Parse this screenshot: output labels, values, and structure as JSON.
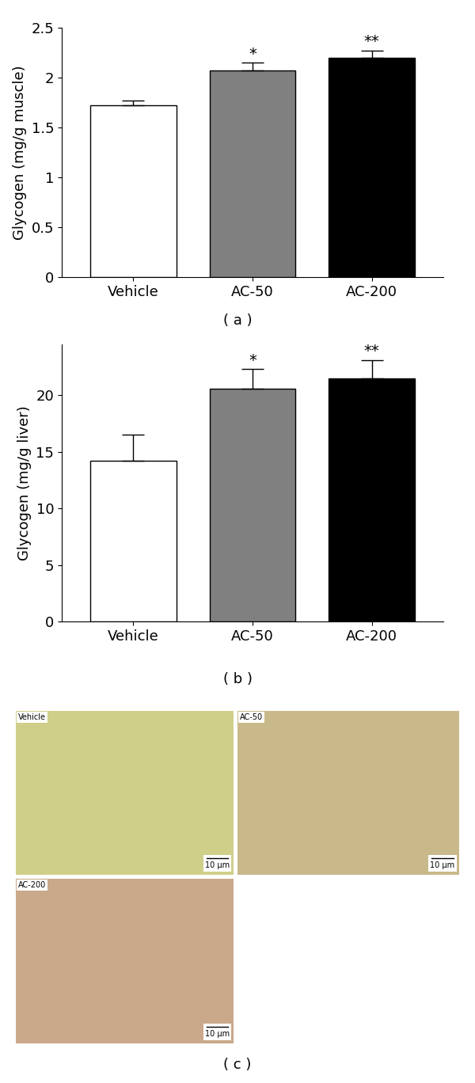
{
  "chart_data": [
    {
      "type": "bar",
      "caption": "( a )",
      "y_label": "Glycogen (mg/g muscle)",
      "categories": [
        "Vehicle",
        "AC-50",
        "AC-200"
      ],
      "values": [
        1.72,
        2.07,
        2.2
      ],
      "errors": [
        0.05,
        0.08,
        0.07
      ],
      "significance": [
        null,
        "*",
        "**"
      ],
      "colors": [
        "#ffffff",
        "#808080",
        "#000000"
      ],
      "ylim": [
        0,
        2.5
      ],
      "yticks": [
        0,
        0.5,
        1,
        1.5,
        2,
        2.5
      ]
    },
    {
      "type": "bar",
      "caption": "( b )",
      "y_label": "Glycogen (mg/g liver)",
      "categories": [
        "Vehicle",
        "AC-50",
        "AC-200"
      ],
      "values": [
        14.2,
        20.6,
        21.5
      ],
      "errors": [
        2.3,
        1.7,
        1.6
      ],
      "significance": [
        null,
        "*",
        "**"
      ],
      "colors": [
        "#ffffff",
        "#808080",
        "#000000"
      ],
      "ylim": [
        0,
        24.5
      ],
      "yticks": [
        0,
        5,
        10,
        15,
        20
      ]
    }
  ],
  "micrographs": {
    "caption": "( c )",
    "panels": [
      {
        "label": "Vehicle",
        "scale_bar": "10 μm"
      },
      {
        "label": "AC-50",
        "scale_bar": "10 μm"
      },
      {
        "label": "AC-200",
        "scale_bar": "10 μm"
      }
    ]
  }
}
